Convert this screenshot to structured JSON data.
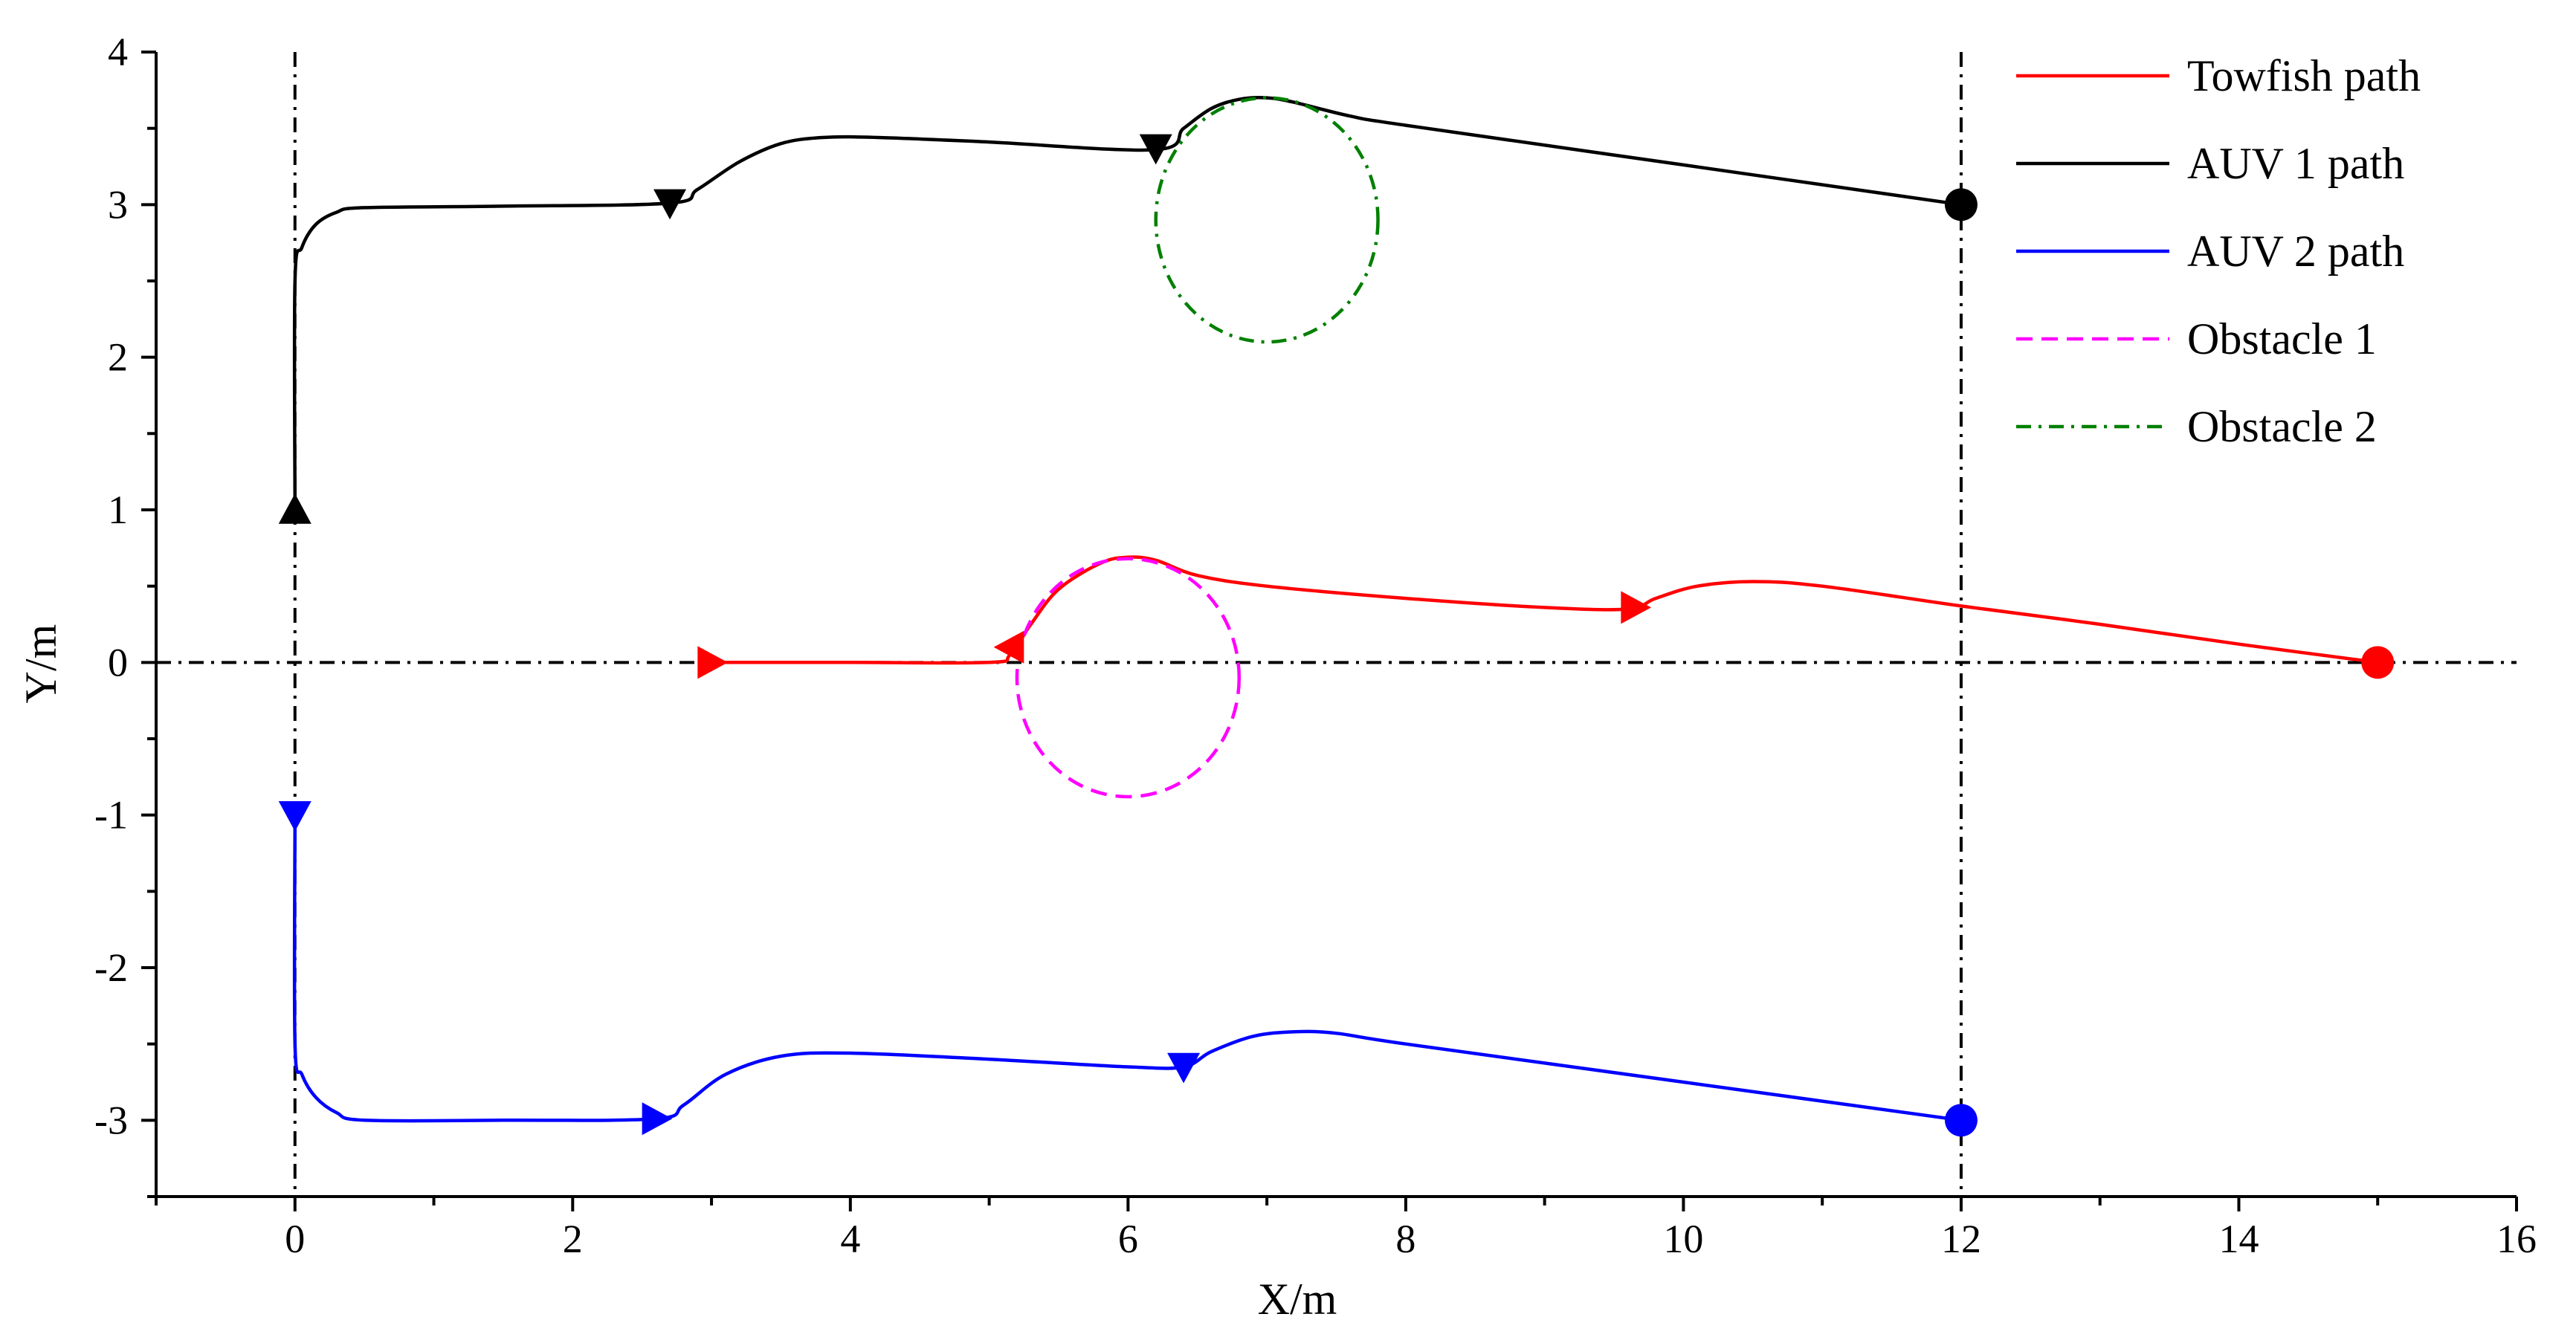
{
  "chart_data": {
    "type": "line",
    "title": "",
    "xlabel": "X/m",
    "ylabel": "Y/m",
    "xlim": [
      -1,
      16
    ],
    "ylim": [
      -3.5,
      4
    ],
    "xticks": [
      0,
      2,
      4,
      6,
      8,
      10,
      12,
      14,
      16
    ],
    "yticks": [
      -3,
      -2,
      -1,
      0,
      1,
      2,
      3,
      4
    ],
    "xtick_labels": [
      "0",
      "2",
      "4",
      "6",
      "8",
      "10",
      "12",
      "14",
      "16"
    ],
    "ytick_labels": [
      "-3",
      "-2",
      "-1",
      "0",
      "1",
      "2",
      "3",
      "4"
    ],
    "grid": false,
    "legend_position": "top-right",
    "reference_lines": [
      {
        "orientation": "vertical",
        "value": 0
      },
      {
        "orientation": "vertical",
        "value": 12
      },
      {
        "orientation": "horizontal",
        "value": 0
      }
    ],
    "series": [
      {
        "name": "Towfish path",
        "color": "#ff0000",
        "style": "solid",
        "x": [
          3.0,
          4.0,
          5.0,
          5.15,
          5.3,
          5.5,
          5.8,
          6.0,
          6.2,
          6.5,
          7.0,
          8.0,
          9.0,
          9.6,
          9.8,
          10.1,
          10.5,
          11.0,
          12.0,
          13.0,
          14.0,
          15.0
        ],
        "y": [
          0.0,
          0.0,
          0.0,
          0.05,
          0.25,
          0.48,
          0.65,
          0.69,
          0.67,
          0.57,
          0.5,
          0.42,
          0.36,
          0.35,
          0.42,
          0.5,
          0.53,
          0.5,
          0.37,
          0.25,
          0.12,
          0.0
        ]
      },
      {
        "name": "AUV 1 path",
        "color": "#000000",
        "style": "solid",
        "x": [
          0.0,
          0.0,
          0.05,
          0.15,
          0.3,
          0.5,
          1.5,
          2.7,
          2.9,
          3.2,
          3.5,
          3.8,
          4.2,
          5.0,
          6.2,
          6.4,
          6.6,
          6.8,
          7.0,
          7.2,
          7.6,
          8.0,
          10.0,
          12.0
        ],
        "y": [
          1.0,
          2.5,
          2.72,
          2.87,
          2.95,
          2.98,
          2.99,
          3.01,
          3.1,
          3.28,
          3.4,
          3.44,
          3.44,
          3.41,
          3.36,
          3.5,
          3.63,
          3.69,
          3.7,
          3.67,
          3.58,
          3.52,
          3.26,
          3.0
        ]
      },
      {
        "name": "AUV 2 path",
        "color": "#0000ff",
        "style": "solid",
        "x": [
          0.0,
          0.0,
          0.05,
          0.15,
          0.3,
          0.5,
          1.5,
          2.6,
          2.8,
          3.1,
          3.5,
          4.0,
          5.0,
          6.0,
          6.4,
          6.6,
          6.9,
          7.2,
          7.5,
          8.0,
          10.0,
          12.0
        ],
        "y": [
          -1.0,
          -2.5,
          -2.7,
          -2.85,
          -2.95,
          -3.0,
          -3.0,
          -2.99,
          -2.9,
          -2.7,
          -2.58,
          -2.56,
          -2.6,
          -2.65,
          -2.65,
          -2.55,
          -2.45,
          -2.42,
          -2.43,
          -2.5,
          -2.75,
          -3.0
        ]
      },
      {
        "name": "Obstacle 1",
        "color": "#ff00ff",
        "style": "dashed",
        "center": [
          6.0,
          -0.1
        ],
        "radius_x": 0.8,
        "radius_y": 0.78
      },
      {
        "name": "Obstacle 2",
        "color": "#008000",
        "style": "dashdot",
        "center": [
          7.0,
          2.9
        ],
        "radius_x": 0.8,
        "radius_y": 0.8
      }
    ],
    "markers": [
      {
        "series": "Towfish path",
        "shape": "triangle-right",
        "x": 3.0,
        "y": 0.0
      },
      {
        "series": "Towfish path",
        "shape": "triangle-left",
        "x": 5.15,
        "y": 0.1
      },
      {
        "series": "Towfish path",
        "shape": "triangle-right",
        "x": 9.65,
        "y": 0.36
      },
      {
        "series": "Towfish path",
        "shape": "circle",
        "x": 15.0,
        "y": 0.0
      },
      {
        "series": "AUV 1 path",
        "shape": "triangle-up",
        "x": 0.0,
        "y": 1.0
      },
      {
        "series": "AUV 1 path",
        "shape": "triangle-down",
        "x": 2.7,
        "y": 3.01
      },
      {
        "series": "AUV 1 path",
        "shape": "triangle-down",
        "x": 6.2,
        "y": 3.37
      },
      {
        "series": "AUV 1 path",
        "shape": "circle",
        "x": 12.0,
        "y": 3.0
      },
      {
        "series": "AUV 2 path",
        "shape": "triangle-down",
        "x": 0.0,
        "y": -1.0
      },
      {
        "series": "AUV 2 path",
        "shape": "triangle-right",
        "x": 2.6,
        "y": -2.99
      },
      {
        "series": "AUV 2 path",
        "shape": "triangle-down",
        "x": 6.4,
        "y": -2.65
      },
      {
        "series": "AUV 2 path",
        "shape": "circle",
        "x": 12.0,
        "y": -3.0
      }
    ]
  }
}
